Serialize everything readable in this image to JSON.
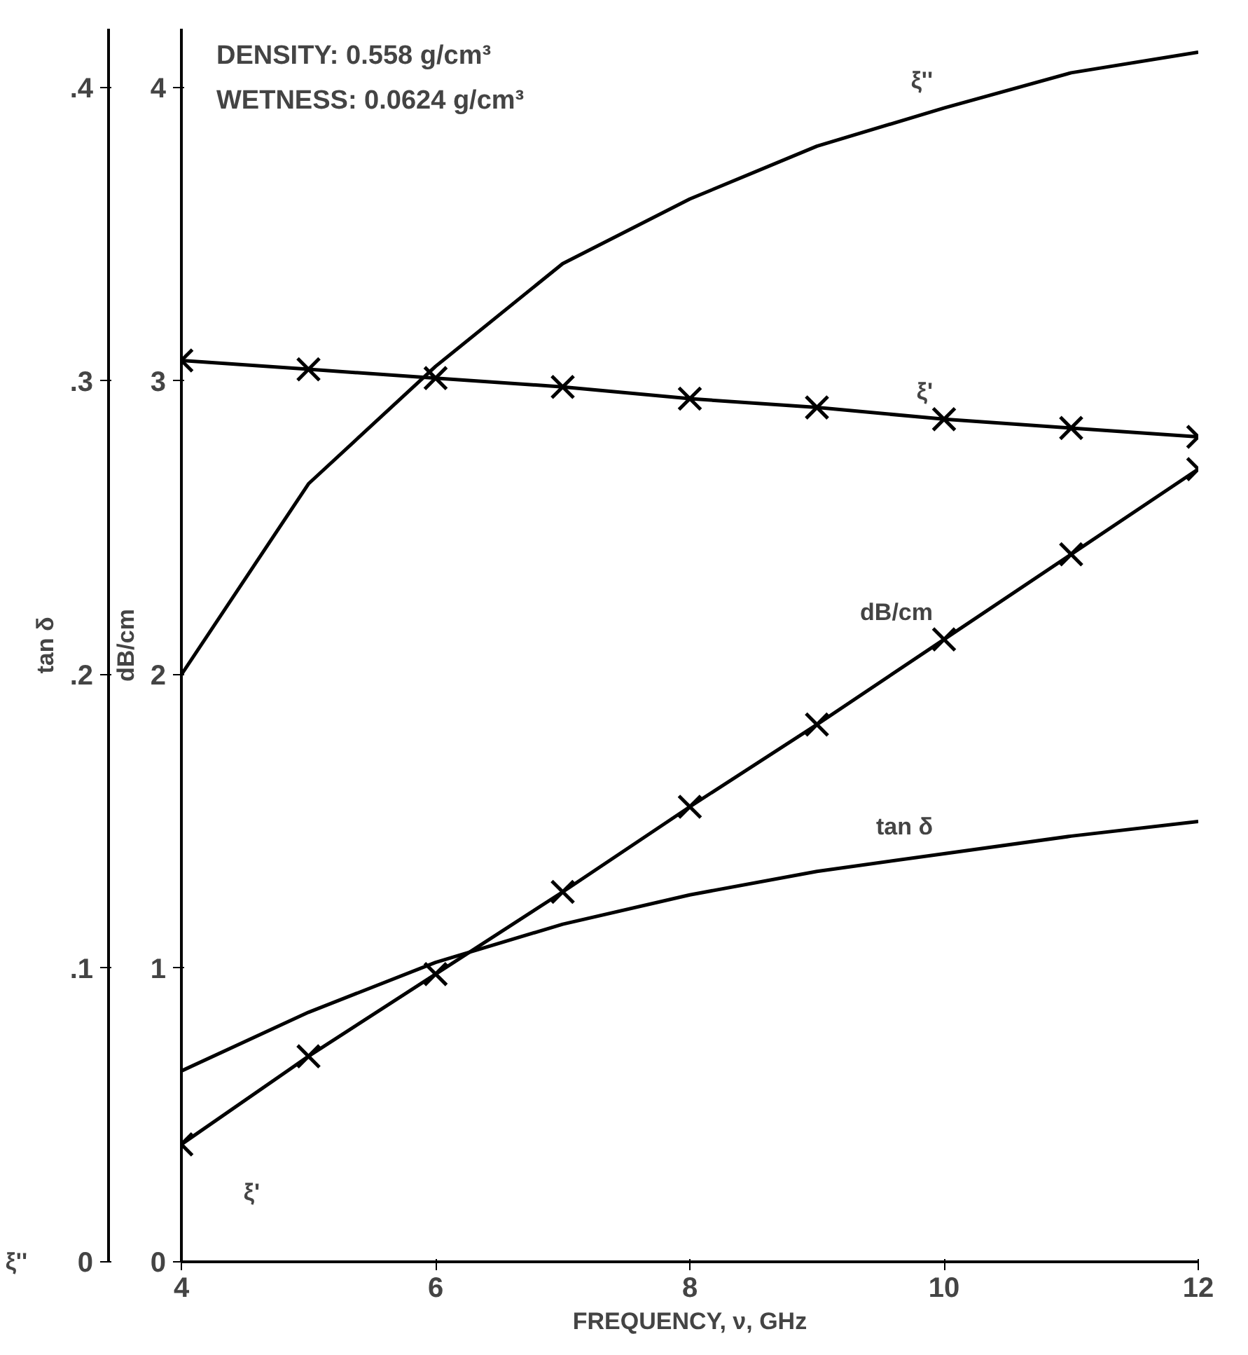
{
  "chart_data": {
    "type": "line",
    "xlabel": "FREQUENCY, ν, GHz",
    "ylabel": "dB/cm",
    "y2label": "tan δ",
    "x": [
      4,
      5,
      6,
      7,
      8,
      9,
      10,
      11,
      12
    ],
    "series": [
      {
        "name": "ξ''",
        "color": "#000000",
        "axis": "y2",
        "marker": "none",
        "values": [
          0.2,
          0.265,
          0.305,
          0.34,
          0.362,
          0.38,
          0.393,
          0.405,
          0.412
        ]
      },
      {
        "name": "ξ'",
        "color": "#000000",
        "marker": "cross",
        "values": [
          3.07,
          3.04,
          3.01,
          2.98,
          2.94,
          2.91,
          2.87,
          2.84,
          2.81
        ]
      },
      {
        "name": "dB/cm",
        "color": "#000000",
        "marker": "cross",
        "values": [
          0.4,
          0.7,
          0.98,
          1.26,
          1.55,
          1.83,
          2.12,
          2.41,
          2.7
        ]
      },
      {
        "name": "tan δ",
        "color": "#000000",
        "axis": "y2",
        "marker": "none",
        "values": [
          0.065,
          0.085,
          0.102,
          0.115,
          0.125,
          0.133,
          0.139,
          0.145,
          0.15
        ]
      }
    ],
    "xlim": [
      4,
      12
    ],
    "xticks": [
      4,
      6,
      8,
      10,
      12
    ],
    "ylim": [
      0,
      4.2
    ],
    "yticks": [
      0,
      1,
      2,
      3,
      4
    ],
    "y2lim": [
      0,
      0.42
    ],
    "y2ticks": [
      0,
      {
        "value": 0.1,
        "label": ".1"
      },
      {
        "value": 0.2,
        "label": ".2"
      },
      {
        "value": 0.3,
        "label": ".3"
      },
      {
        "value": 0.4,
        "label": ".4"
      }
    ],
    "grid": false,
    "legend": false,
    "line_style": "solid",
    "annotations": [
      "DENSITY: 0.558 g/cm³",
      "WETNESS: 0.0624 g/cm³",
      "ξ''",
      "ξ'"
    ]
  }
}
